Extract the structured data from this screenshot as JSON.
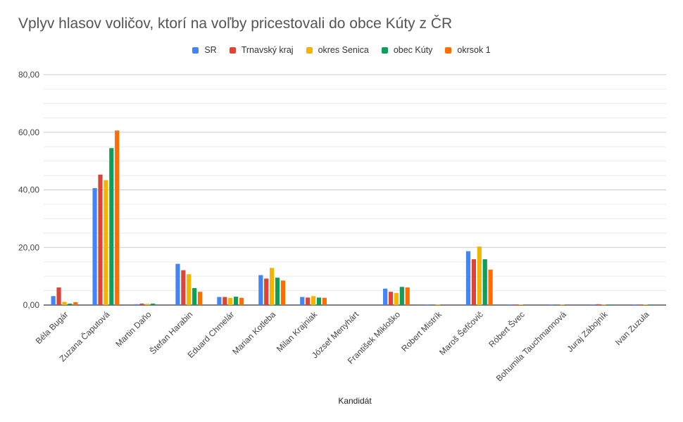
{
  "chart_data": {
    "type": "bar",
    "title": "Vplyv hlasov voličov, ktorí na voľby pricestovali do obce Kúty z ČR",
    "xlabel": "Kandidát",
    "ylabel": "",
    "ylim": [
      0,
      80
    ],
    "yticks": [
      "0,00",
      "20,00",
      "40,00",
      "60,00",
      "80,00"
    ],
    "grid": true,
    "legend_position": "top",
    "categories": [
      "Béla Bugár",
      "Zuzana Čaputová",
      "Martin Daňo",
      "Štefan Harabin",
      "Eduard Chmelár",
      "Marian Kotleba",
      "Milan Krajniak",
      "József Menyhárt",
      "František Mikloško",
      "Robert Mistrík",
      "Maroš Šefčovič",
      "Róbert Švec",
      "Bohumila Tauchmannová",
      "Juraj Zábojník",
      "Ivan Zuzula"
    ],
    "series": [
      {
        "name": "SR",
        "color": "#4285f4",
        "values": [
          3.1,
          40.6,
          0.3,
          14.3,
          2.8,
          10.4,
          2.8,
          0.0,
          5.7,
          0.1,
          18.7,
          0.1,
          0.1,
          0.2,
          0.2
        ]
      },
      {
        "name": "Trnavský kraj",
        "color": "#db4437",
        "values": [
          6.1,
          45.3,
          0.5,
          12.1,
          2.8,
          9.2,
          2.6,
          0.0,
          4.6,
          0.0,
          15.9,
          0.2,
          0.0,
          0.3,
          0.2
        ]
      },
      {
        "name": "okres Senica",
        "color": "#f4b400",
        "values": [
          1.1,
          43.4,
          0.4,
          10.7,
          2.5,
          12.9,
          3.1,
          0.0,
          4.2,
          0.2,
          20.3,
          0.1,
          0.1,
          0.2,
          0.2
        ]
      },
      {
        "name": "obec Kúty",
        "color": "#0f9d58",
        "values": [
          0.5,
          54.5,
          0.5,
          5.9,
          2.9,
          9.5,
          2.6,
          0.0,
          6.3,
          0.0,
          15.9,
          0.0,
          0.0,
          0.2,
          0.2
        ]
      },
      {
        "name": "okrsok 1",
        "color": "#ff6d01",
        "values": [
          1.0,
          60.6,
          0.0,
          4.6,
          2.5,
          8.5,
          2.5,
          0.0,
          6.1,
          0.0,
          12.3,
          0.0,
          0.0,
          0.0,
          0.0
        ]
      }
    ]
  }
}
